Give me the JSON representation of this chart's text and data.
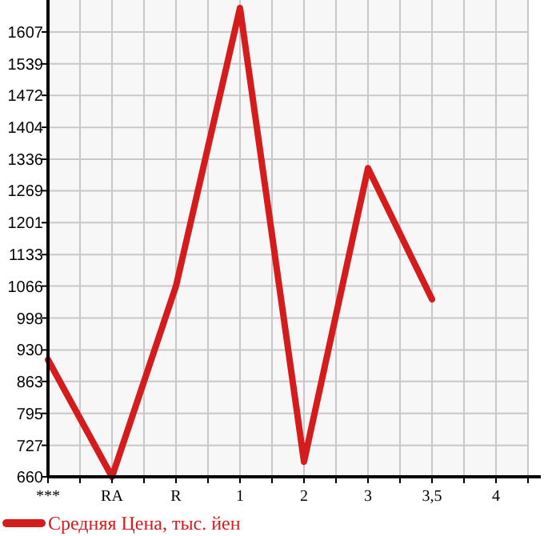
{
  "chart_data": {
    "type": "line",
    "categories": [
      "***",
      "RA",
      "R",
      "1",
      "2",
      "3",
      "3,5",
      "4"
    ],
    "series": [
      {
        "name": "Средняя Цена, тыс. йен",
        "color": "#d41c1c",
        "values": [
          909,
          660,
          1066,
          1658,
          692,
          1317,
          1038,
          null
        ]
      }
    ],
    "ylim": [
      660,
      1675
    ],
    "yticks": [
      660,
      727,
      795,
      863,
      930,
      998,
      1066,
      1133,
      1201,
      1269,
      1336,
      1404,
      1472,
      1539,
      1607
    ],
    "grid": true,
    "legend": "bottom left",
    "marker": "none",
    "line_style": "solid"
  }
}
